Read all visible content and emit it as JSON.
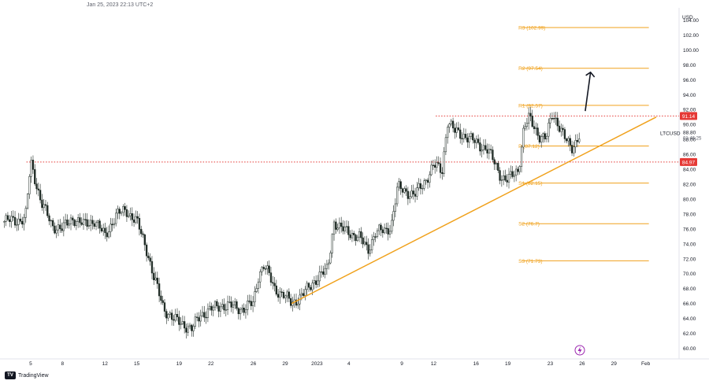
{
  "header": {
    "timestamp": "Jan 25, 2023 22:13 UTC+2"
  },
  "footer": {
    "brand": "TradingView",
    "logo_text": "TV"
  },
  "chart_data": {
    "type": "candlestick",
    "symbol": "LTCUSD",
    "currency": "USD",
    "y_range": [
      59,
      105
    ],
    "y_ticks": [
      "60.00",
      "62.00",
      "64.00",
      "66.00",
      "68.00",
      "70.00",
      "72.00",
      "74.00",
      "76.00",
      "78.00",
      "80.00",
      "82.00",
      "84.00",
      "86.00",
      "88.00",
      "90.00",
      "92.00",
      "94.00",
      "96.00",
      "98.00",
      "100.00",
      "102.00",
      "104.00"
    ],
    "x_ticks": [
      {
        "label": "5",
        "day": 5
      },
      {
        "label": "8",
        "day": 8
      },
      {
        "label": "12",
        "day": 12
      },
      {
        "label": "15",
        "day": 15
      },
      {
        "label": "19",
        "day": 19
      },
      {
        "label": "22",
        "day": 22
      },
      {
        "label": "26",
        "day": 26
      },
      {
        "label": "29",
        "day": 29
      },
      {
        "label": "2023",
        "day": 32
      },
      {
        "label": "4",
        "day": 35
      },
      {
        "label": "9",
        "day": 40
      },
      {
        "label": "12",
        "day": 43
      },
      {
        "label": "16",
        "day": 47
      },
      {
        "label": "19",
        "day": 50
      },
      {
        "label": "23",
        "day": 54
      },
      {
        "label": "26",
        "day": 57
      },
      {
        "label": "29",
        "day": 60
      },
      {
        "label": "Feb",
        "day": 63
      }
    ],
    "x_domain": [
      2.4,
      66
    ],
    "price_path": [
      [
        2.5,
        77.0
      ],
      [
        4.5,
        77.3
      ],
      [
        5.0,
        85.0
      ],
      [
        6.0,
        79.5
      ],
      [
        7.0,
        76.5
      ],
      [
        8.0,
        76.0
      ],
      [
        9.0,
        77.5
      ],
      [
        10.0,
        76.5
      ],
      [
        11.0,
        77.2
      ],
      [
        12.0,
        75.0
      ],
      [
        13.0,
        77.8
      ],
      [
        14.0,
        78.5
      ],
      [
        15.0,
        77.0
      ],
      [
        16.0,
        73.0
      ],
      [
        16.6,
        69.5
      ],
      [
        17.5,
        65.5
      ],
      [
        18.5,
        63.8
      ],
      [
        19.5,
        63.2
      ],
      [
        20.2,
        62.5
      ],
      [
        21.0,
        64.5
      ],
      [
        22.0,
        65.2
      ],
      [
        23.0,
        65.8
      ],
      [
        24.0,
        65.6
      ],
      [
        25.0,
        65.3
      ],
      [
        26.0,
        66.0
      ],
      [
        26.5,
        70.0
      ],
      [
        27.0,
        71.2
      ],
      [
        28.0,
        68.0
      ],
      [
        28.8,
        67.2
      ],
      [
        29.6,
        66.0
      ],
      [
        30.5,
        67.0
      ],
      [
        31.2,
        68.0
      ],
      [
        32.0,
        69.5
      ],
      [
        33.0,
        70.5
      ],
      [
        33.6,
        77.0
      ],
      [
        34.2,
        76.0
      ],
      [
        35.2,
        75.5
      ],
      [
        36.0,
        74.8
      ],
      [
        36.8,
        73.2
      ],
      [
        37.5,
        75.5
      ],
      [
        38.5,
        75.8
      ],
      [
        39.0,
        76.5
      ],
      [
        39.6,
        81.5
      ],
      [
        40.5,
        81.0
      ],
      [
        41.2,
        80.5
      ],
      [
        42.0,
        82.0
      ],
      [
        43.0,
        84.5
      ],
      [
        43.8,
        83.8
      ],
      [
        44.3,
        90.5
      ],
      [
        45.0,
        89.0
      ],
      [
        46.0,
        88.5
      ],
      [
        47.0,
        87.5
      ],
      [
        48.0,
        86.8
      ],
      [
        48.6,
        85.2
      ],
      [
        49.4,
        83.0
      ],
      [
        50.0,
        82.5
      ],
      [
        51.0,
        84.0
      ],
      [
        51.5,
        89.5
      ],
      [
        52.0,
        90.8
      ],
      [
        53.0,
        88.5
      ],
      [
        53.6,
        88.0
      ],
      [
        54.2,
        91.5
      ],
      [
        54.8,
        90.0
      ],
      [
        55.4,
        88.0
      ],
      [
        56.0,
        86.8
      ],
      [
        56.5,
        88.0
      ],
      [
        56.8,
        88.8
      ]
    ],
    "horizontal_levels": [
      {
        "label": "R3 (102.99)",
        "value": 102.99,
        "style": "pivot"
      },
      {
        "label": "R2 (97.54)",
        "value": 97.54,
        "style": "pivot"
      },
      {
        "label": "R1 (92.57)",
        "value": 92.57,
        "style": "pivot"
      },
      {
        "label": "P (87.12)",
        "value": 87.12,
        "style": "pivot"
      },
      {
        "label": "S1 (82.15)",
        "value": 82.15,
        "style": "pivot"
      },
      {
        "label": "S2 (76.7)",
        "value": 76.7,
        "style": "pivot"
      },
      {
        "label": "S3 (71.73)",
        "value": 71.73,
        "style": "pivot"
      }
    ],
    "dotted_levels": [
      {
        "price_label": "91.14",
        "value": 91.14
      },
      {
        "price_label": "84.97",
        "value": 84.97
      }
    ],
    "trendline": {
      "from": [
        29.6,
        66.0
      ],
      "to": [
        64.0,
        91.0
      ]
    },
    "arrow": {
      "from": [
        57.3,
        91.8
      ],
      "to": [
        57.8,
        97.0
      ]
    },
    "last_price": {
      "symbol": "LTCUSD",
      "price": "88.80",
      "countdown": "01:46:25",
      "value": 88.8
    },
    "colors": {
      "up": "#26a69a",
      "down": "#131722",
      "candle": "#1e2a24",
      "pivot": "#f0a11b",
      "dotted": "#e53935",
      "trend": "#f0a11b"
    }
  }
}
